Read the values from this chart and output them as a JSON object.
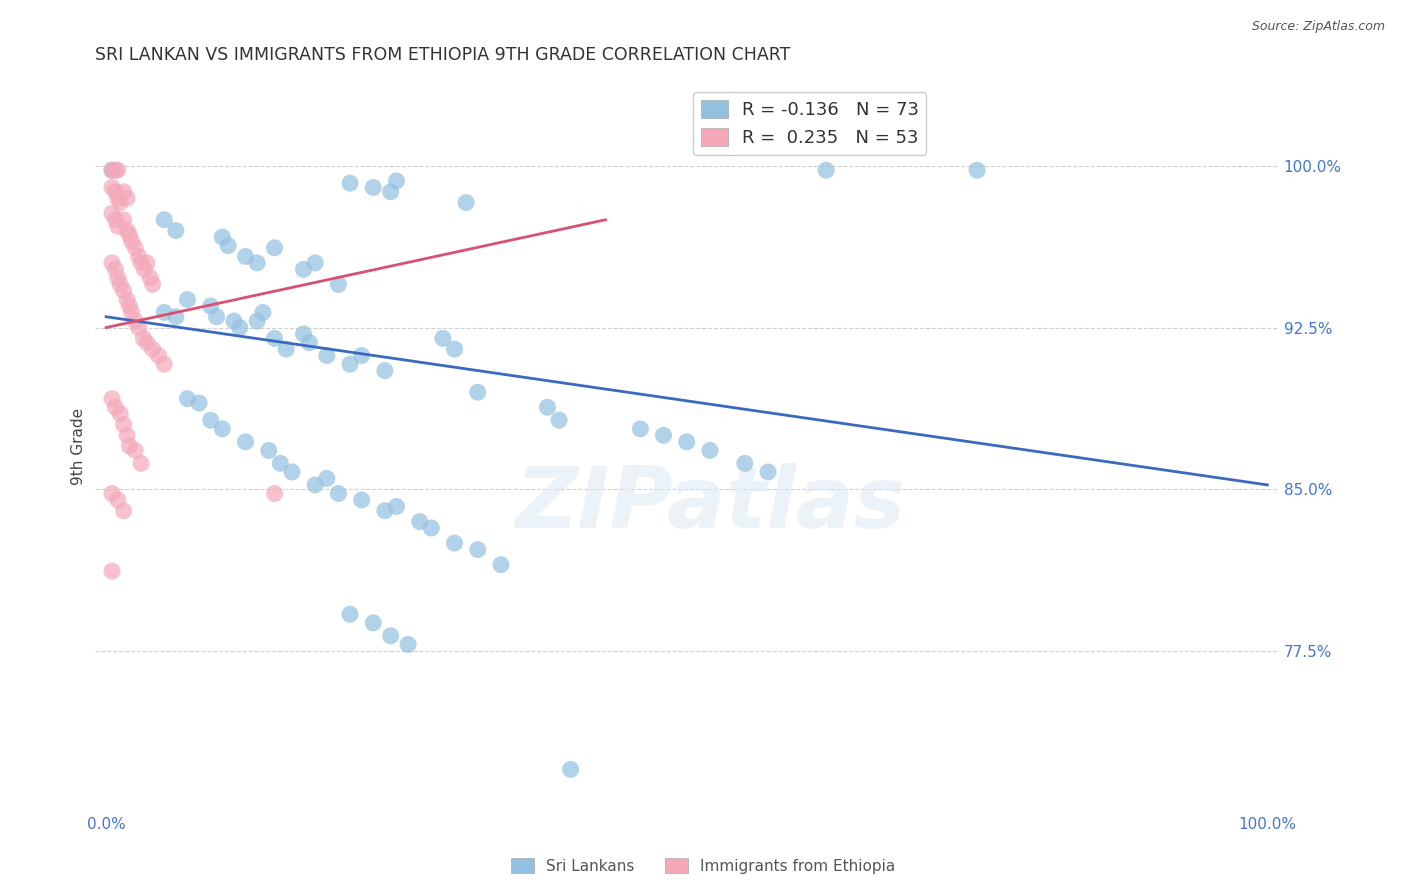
{
  "title": "SRI LANKAN VS IMMIGRANTS FROM ETHIOPIA 9TH GRADE CORRELATION CHART",
  "source": "Source: ZipAtlas.com",
  "ylabel": "9th Grade",
  "y_ticks": [
    0.775,
    0.85,
    0.925,
    1.0
  ],
  "y_tick_labels": [
    "77.5%",
    "85.0%",
    "92.5%",
    "100.0%"
  ],
  "watermark": "ZIPatlas",
  "legend_blue_r": "-0.136",
  "legend_blue_n": "73",
  "legend_pink_r": "0.235",
  "legend_pink_n": "53",
  "legend_blue_label": "Sri Lankans",
  "legend_pink_label": "Immigrants from Ethiopia",
  "blue_color": "#92c0e0",
  "pink_color": "#f4a8ba",
  "blue_line_color": "#3a6abf",
  "pink_line_color": "#d95070",
  "blue_scatter": [
    [
      0.005,
      0.998
    ],
    [
      0.62,
      0.998
    ],
    [
      0.75,
      0.998
    ],
    [
      0.21,
      0.992
    ],
    [
      0.23,
      0.99
    ],
    [
      0.245,
      0.988
    ],
    [
      0.25,
      0.993
    ],
    [
      0.31,
      0.983
    ],
    [
      0.05,
      0.975
    ],
    [
      0.06,
      0.97
    ],
    [
      0.1,
      0.967
    ],
    [
      0.105,
      0.963
    ],
    [
      0.12,
      0.958
    ],
    [
      0.13,
      0.955
    ],
    [
      0.145,
      0.962
    ],
    [
      0.17,
      0.952
    ],
    [
      0.18,
      0.955
    ],
    [
      0.2,
      0.945
    ],
    [
      0.05,
      0.932
    ],
    [
      0.06,
      0.93
    ],
    [
      0.07,
      0.938
    ],
    [
      0.09,
      0.935
    ],
    [
      0.095,
      0.93
    ],
    [
      0.11,
      0.928
    ],
    [
      0.115,
      0.925
    ],
    [
      0.13,
      0.928
    ],
    [
      0.135,
      0.932
    ],
    [
      0.145,
      0.92
    ],
    [
      0.155,
      0.915
    ],
    [
      0.17,
      0.922
    ],
    [
      0.175,
      0.918
    ],
    [
      0.19,
      0.912
    ],
    [
      0.21,
      0.908
    ],
    [
      0.22,
      0.912
    ],
    [
      0.24,
      0.905
    ],
    [
      0.29,
      0.92
    ],
    [
      0.3,
      0.915
    ],
    [
      0.32,
      0.895
    ],
    [
      0.38,
      0.888
    ],
    [
      0.39,
      0.882
    ],
    [
      0.46,
      0.878
    ],
    [
      0.48,
      0.875
    ],
    [
      0.5,
      0.872
    ],
    [
      0.52,
      0.868
    ],
    [
      0.55,
      0.862
    ],
    [
      0.57,
      0.858
    ],
    [
      0.07,
      0.892
    ],
    [
      0.08,
      0.89
    ],
    [
      0.09,
      0.882
    ],
    [
      0.1,
      0.878
    ],
    [
      0.12,
      0.872
    ],
    [
      0.14,
      0.868
    ],
    [
      0.15,
      0.862
    ],
    [
      0.16,
      0.858
    ],
    [
      0.18,
      0.852
    ],
    [
      0.19,
      0.855
    ],
    [
      0.2,
      0.848
    ],
    [
      0.22,
      0.845
    ],
    [
      0.24,
      0.84
    ],
    [
      0.25,
      0.842
    ],
    [
      0.27,
      0.835
    ],
    [
      0.28,
      0.832
    ],
    [
      0.3,
      0.825
    ],
    [
      0.32,
      0.822
    ],
    [
      0.34,
      0.815
    ],
    [
      0.21,
      0.792
    ],
    [
      0.23,
      0.788
    ],
    [
      0.245,
      0.782
    ],
    [
      0.26,
      0.778
    ],
    [
      0.4,
      0.72
    ]
  ],
  "pink_scatter": [
    [
      0.005,
      0.998
    ],
    [
      0.008,
      0.998
    ],
    [
      0.01,
      0.998
    ],
    [
      0.005,
      0.99
    ],
    [
      0.008,
      0.988
    ],
    [
      0.01,
      0.985
    ],
    [
      0.012,
      0.983
    ],
    [
      0.015,
      0.988
    ],
    [
      0.018,
      0.985
    ],
    [
      0.005,
      0.978
    ],
    [
      0.008,
      0.975
    ],
    [
      0.01,
      0.972
    ],
    [
      0.015,
      0.975
    ],
    [
      0.018,
      0.97
    ],
    [
      0.02,
      0.968
    ],
    [
      0.022,
      0.965
    ],
    [
      0.025,
      0.962
    ],
    [
      0.028,
      0.958
    ],
    [
      0.03,
      0.955
    ],
    [
      0.033,
      0.952
    ],
    [
      0.035,
      0.955
    ],
    [
      0.038,
      0.948
    ],
    [
      0.04,
      0.945
    ],
    [
      0.005,
      0.955
    ],
    [
      0.008,
      0.952
    ],
    [
      0.01,
      0.948
    ],
    [
      0.012,
      0.945
    ],
    [
      0.015,
      0.942
    ],
    [
      0.018,
      0.938
    ],
    [
      0.02,
      0.935
    ],
    [
      0.022,
      0.932
    ],
    [
      0.025,
      0.928
    ],
    [
      0.028,
      0.925
    ],
    [
      0.032,
      0.92
    ],
    [
      0.035,
      0.918
    ],
    [
      0.04,
      0.915
    ],
    [
      0.045,
      0.912
    ],
    [
      0.05,
      0.908
    ],
    [
      0.005,
      0.892
    ],
    [
      0.008,
      0.888
    ],
    [
      0.012,
      0.885
    ],
    [
      0.015,
      0.88
    ],
    [
      0.018,
      0.875
    ],
    [
      0.02,
      0.87
    ],
    [
      0.025,
      0.868
    ],
    [
      0.03,
      0.862
    ],
    [
      0.005,
      0.848
    ],
    [
      0.01,
      0.845
    ],
    [
      0.015,
      0.84
    ],
    [
      0.005,
      0.812
    ],
    [
      0.145,
      0.848
    ]
  ],
  "blue_line": {
    "x0": 0.0,
    "y0": 0.93,
    "x1": 1.0,
    "y1": 0.852
  },
  "pink_line": {
    "x0": 0.0,
    "y0": 0.925,
    "x1": 0.43,
    "y1": 0.975
  },
  "xlim": [
    -0.01,
    1.01
  ],
  "ylim": [
    0.7,
    1.04
  ],
  "background_color": "#ffffff",
  "grid_color": "#cccccc",
  "title_fontsize": 12.5,
  "axis_label_fontsize": 11,
  "tick_label_fontsize": 11,
  "title_color": "#333333",
  "axis_tick_color": "#4477cc"
}
